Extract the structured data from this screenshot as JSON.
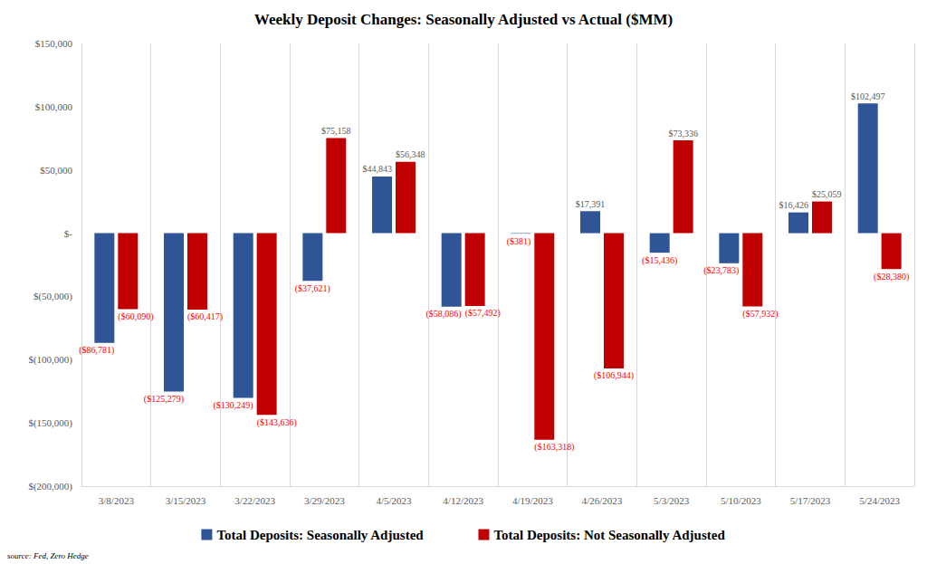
{
  "chart_data": {
    "type": "bar",
    "title": "Weekly Deposit Changes: Seasonally Adjusted vs Actual ($MM)",
    "categories": [
      "3/8/2023",
      "3/15/2023",
      "3/22/2023",
      "3/29/2023",
      "4/5/2023",
      "4/12/2023",
      "4/19/2023",
      "4/26/2023",
      "5/3/2023",
      "5/10/2023",
      "5/17/2023",
      "5/24/2023"
    ],
    "series": [
      {
        "name": "Total Deposits: Seasonally Adjusted",
        "color": "#2F5597",
        "values": [
          -86781,
          -125279,
          -130249,
          -37621,
          44843,
          -58086,
          -381,
          17391,
          -15436,
          -23783,
          16426,
          102497
        ],
        "value_labels": [
          "($86,781)",
          "($125,279)",
          "($130,249)",
          "($37,621)",
          "$44,843",
          "($58,086)",
          "($381)",
          "$17,391",
          "($15,436)",
          "($23,783)",
          "$16,426",
          "$102,497"
        ]
      },
      {
        "name": "Total Deposits: Not Seasonally Adjusted",
        "color": "#C00000",
        "values": [
          -60090,
          -60417,
          -143636,
          75158,
          56348,
          -57492,
          -163318,
          -106944,
          73336,
          -57932,
          25059,
          -28380
        ],
        "value_labels": [
          "($60,090)",
          "($60,417)",
          "($143,636)",
          "$75,158",
          "$56,348",
          "($57,492)",
          "($163,318)",
          "($106,944)",
          "$73,336",
          "($57,932)",
          "$25,059",
          "($28,380)"
        ]
      }
    ],
    "ylim": [
      -200000,
      150000
    ],
    "yticks": [
      {
        "value": -200000,
        "label": "$(200,000)"
      },
      {
        "value": -150000,
        "label": "$(150,000)"
      },
      {
        "value": -100000,
        "label": "$(100,000)"
      },
      {
        "value": -50000,
        "label": "$(50,000)"
      },
      {
        "value": 0,
        "label": "$-"
      },
      {
        "value": 50000,
        "label": "$50,000"
      },
      {
        "value": 100000,
        "label": "$100,000"
      },
      {
        "value": 150000,
        "label": "$150,000"
      }
    ],
    "grid": "x",
    "legend": "bottom",
    "data_labels": true,
    "annotation": "source: Fed, Zero Hedge"
  }
}
